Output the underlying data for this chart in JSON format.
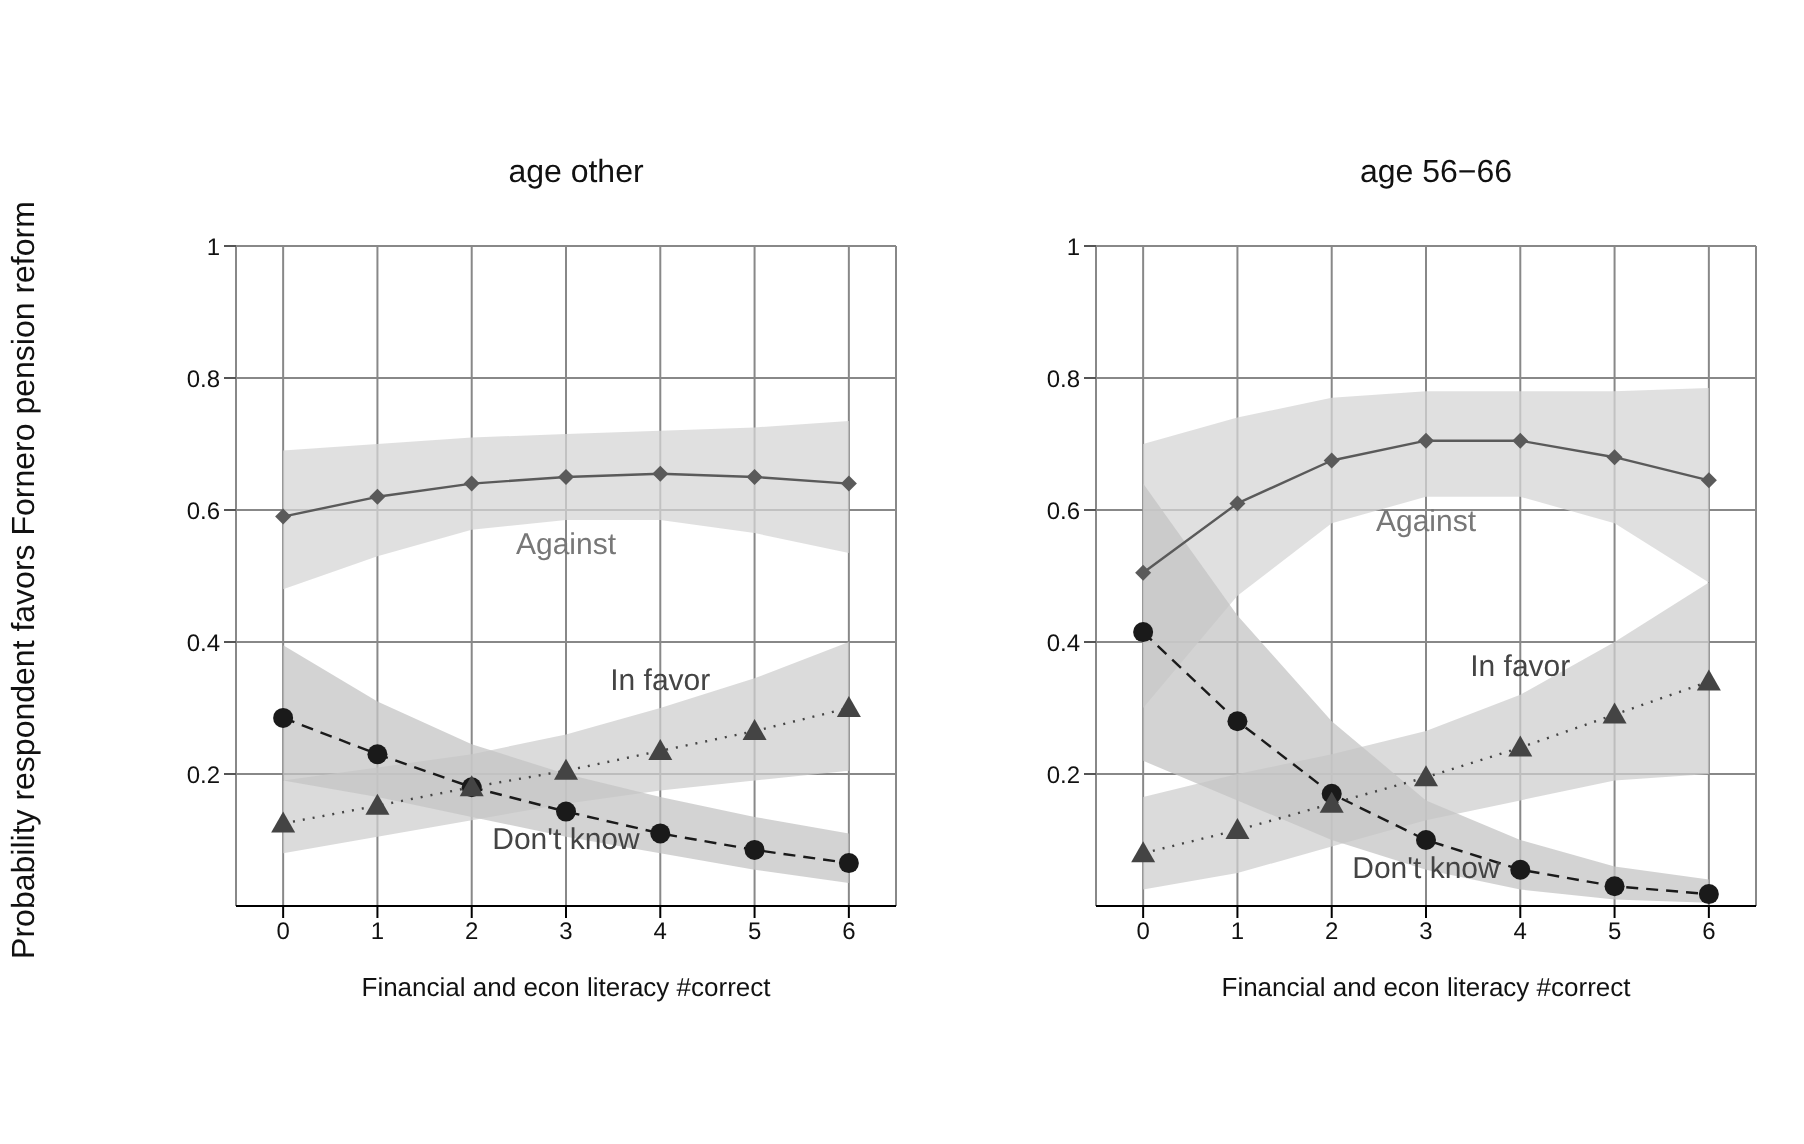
{
  "chart_data": [
    {
      "type": "line",
      "title": "age other",
      "xlabel": "Financial and econ literacy #correct",
      "ylabel": "Probability respondent favors Fornero pension reform",
      "x": [
        0,
        1,
        2,
        3,
        4,
        5,
        6
      ],
      "xlim": [
        -0.5,
        6.5
      ],
      "xticks": [
        0,
        1,
        2,
        3,
        4,
        5,
        6
      ],
      "ylim": [
        0,
        1
      ],
      "yticks": [
        0.2,
        0.4,
        0.6,
        0.8,
        1
      ],
      "grid": true,
      "series": [
        {
          "color": "#5a5a5a",
          "marker": "diamond",
          "line_style": "solid",
          "values": [
            0.59,
            0.62,
            0.64,
            0.65,
            0.655,
            0.65,
            0.64
          ],
          "lower": [
            0.48,
            0.53,
            0.57,
            0.585,
            0.585,
            0.565,
            0.535
          ],
          "upper": [
            0.69,
            0.7,
            0.71,
            0.715,
            0.72,
            0.725,
            0.735
          ]
        },
        {
          "color": "#444444",
          "marker": "triangle",
          "line_style": "dotted",
          "values": [
            0.125,
            0.152,
            0.18,
            0.205,
            0.235,
            0.265,
            0.3
          ],
          "lower": [
            0.08,
            0.105,
            0.13,
            0.155,
            0.175,
            0.19,
            0.205
          ],
          "upper": [
            0.19,
            0.21,
            0.23,
            0.26,
            0.3,
            0.345,
            0.4
          ]
        },
        {
          "color": "#1a1a1a",
          "marker": "circle",
          "line_style": "dashed",
          "values": [
            0.285,
            0.23,
            0.18,
            0.143,
            0.11,
            0.085,
            0.065
          ],
          "lower": [
            0.19,
            0.165,
            0.135,
            0.105,
            0.08,
            0.055,
            0.035
          ],
          "upper": [
            0.395,
            0.31,
            0.245,
            0.2,
            0.165,
            0.135,
            0.11
          ]
        }
      ],
      "annotations": [
        "Against",
        "In favor",
        "Don't know"
      ]
    },
    {
      "type": "line",
      "title": "age 56−66",
      "xlabel": "Financial and econ literacy #correct",
      "x": [
        0,
        1,
        2,
        3,
        4,
        5,
        6
      ],
      "xlim": [
        -0.5,
        6.5
      ],
      "xticks": [
        0,
        1,
        2,
        3,
        4,
        5,
        6
      ],
      "ylim": [
        0,
        1
      ],
      "yticks": [
        0.2,
        0.4,
        0.6,
        0.8,
        1
      ],
      "grid": true,
      "series": [
        {
          "color": "#5a5a5a",
          "marker": "diamond",
          "line_style": "solid",
          "values": [
            0.505,
            0.61,
            0.675,
            0.705,
            0.705,
            0.68,
            0.645
          ],
          "lower": [
            0.3,
            0.47,
            0.58,
            0.62,
            0.62,
            0.58,
            0.49
          ],
          "upper": [
            0.7,
            0.74,
            0.77,
            0.78,
            0.78,
            0.78,
            0.785
          ]
        },
        {
          "color": "#444444",
          "marker": "triangle",
          "line_style": "dotted",
          "values": [
            0.08,
            0.115,
            0.155,
            0.195,
            0.24,
            0.29,
            0.34
          ],
          "lower": [
            0.025,
            0.05,
            0.09,
            0.13,
            0.16,
            0.19,
            0.2
          ],
          "upper": [
            0.165,
            0.2,
            0.23,
            0.265,
            0.32,
            0.4,
            0.49
          ]
        },
        {
          "color": "#1a1a1a",
          "marker": "circle",
          "line_style": "dashed",
          "values": [
            0.415,
            0.28,
            0.17,
            0.1,
            0.055,
            0.03,
            0.018
          ],
          "lower": [
            0.22,
            0.16,
            0.1,
            0.055,
            0.025,
            0.01,
            0.005
          ],
          "upper": [
            0.64,
            0.44,
            0.28,
            0.16,
            0.1,
            0.06,
            0.04
          ]
        }
      ],
      "annotations": [
        "Against",
        "In favor",
        "Don't know"
      ]
    }
  ]
}
